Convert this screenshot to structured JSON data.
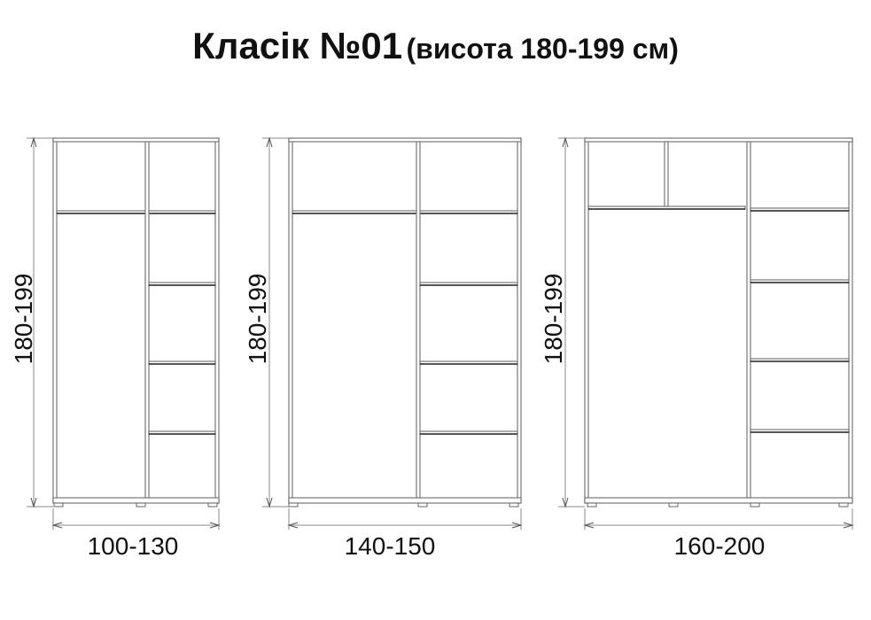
{
  "title": {
    "main": "Класік №01",
    "sub": "(висота 180-199 см)"
  },
  "wardrobes": [
    {
      "height_label": "180-199",
      "width_label": "100-130"
    },
    {
      "height_label": "180-199",
      "width_label": "140-150"
    },
    {
      "height_label": "180-199",
      "width_label": "160-200"
    }
  ]
}
